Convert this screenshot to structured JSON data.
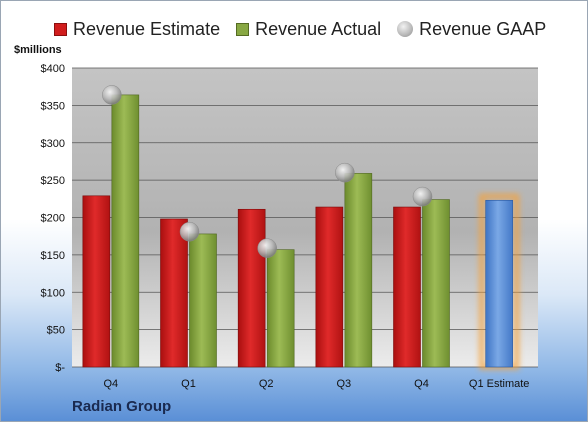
{
  "chart_data": {
    "type": "bar",
    "categories": [
      "Q4",
      "Q1",
      "Q2",
      "Q3",
      "Q4",
      "Q1 Estimate"
    ],
    "series": [
      {
        "name": "Revenue Estimate",
        "values": [
          229,
          198,
          211,
          214,
          214,
          null
        ],
        "color": "#d11d1d"
      },
      {
        "name": "Revenue Actual",
        "values": [
          364,
          178,
          157,
          259,
          224,
          223
        ],
        "color": "#88a843",
        "highlight_last_color": "#5b8fd6"
      },
      {
        "name": "Revenue GAAP",
        "values": [
          364,
          181,
          159,
          260,
          228,
          null
        ],
        "color": "#b5b5b5",
        "style": "sphere-marker"
      }
    ],
    "ylabel": "$millions",
    "ylim": [
      0,
      400
    ],
    "y_ticks": [
      0,
      50,
      100,
      150,
      200,
      250,
      300,
      350,
      400
    ],
    "y_tick_labels": [
      "$-",
      "$50",
      "$100",
      "$150",
      "$200",
      "$250",
      "$300",
      "$350",
      "$400"
    ],
    "grid": true,
    "legend_position": "top",
    "plot_background": "gray-gradient"
  },
  "legend": {
    "estimate": "Revenue Estimate",
    "actual": "Revenue Actual",
    "gaap": "Revenue GAAP"
  },
  "unit_label": "$millions",
  "company_name": "Radian Group"
}
